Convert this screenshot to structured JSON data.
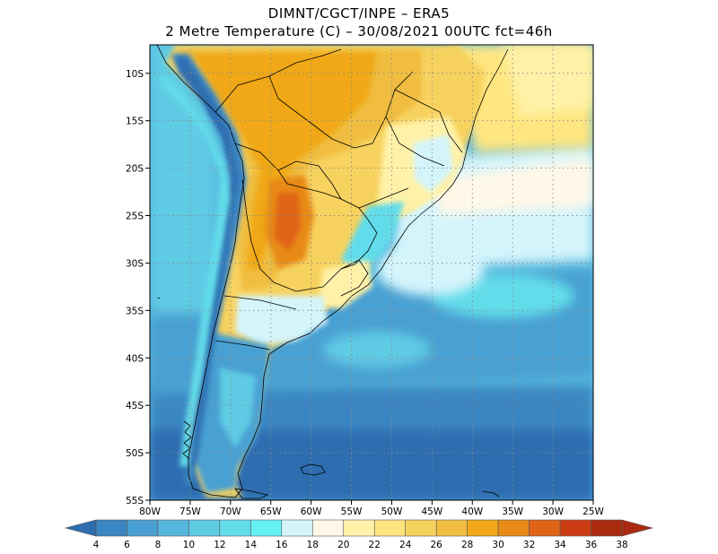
{
  "title": {
    "line1": "DIMNT/CGCT/INPE –  ERA5",
    "line2": "2 Metre Temperature (C) –  30/08/2021 00UTC fct=46h"
  },
  "map": {
    "lon_range": [
      -80,
      -25
    ],
    "lat_range": [
      -55,
      -7
    ],
    "lon_ticks": [
      "80W",
      "75W",
      "70W",
      "65W",
      "60W",
      "55W",
      "50W",
      "45W",
      "40W",
      "35W",
      "30W",
      "25W"
    ],
    "lat_ticks": [
      "10S",
      "15S",
      "20S",
      "25S",
      "30S",
      "35S",
      "40S",
      "45S",
      "50S",
      "55S"
    ],
    "gridlines": "dotted"
  },
  "colorbar": {
    "labels": [
      "4",
      "6",
      "8",
      "10",
      "12",
      "14",
      "16",
      "18",
      "20",
      "22",
      "24",
      "26",
      "28",
      "30",
      "32",
      "34",
      "36",
      "38"
    ],
    "colors": [
      "#2d6db0",
      "#3b86c2",
      "#4aa0d2",
      "#56b8de",
      "#5ecbe4",
      "#62dcea",
      "#66f0f2",
      "#d4f4fb",
      "#fff8e8",
      "#fff2a8",
      "#ffe680",
      "#f7d25e",
      "#f0bd40",
      "#f0a818",
      "#e88a18",
      "#e06418",
      "#cc3c14",
      "#aa2a10"
    ]
  }
}
